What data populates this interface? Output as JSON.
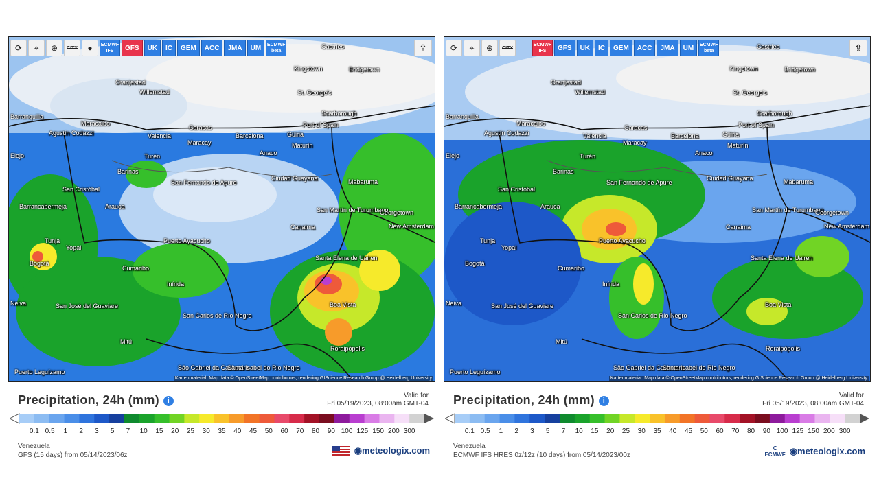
{
  "toolbar": {
    "city_label": "CITY",
    "left_models": [
      {
        "label": "ECMWF IFS",
        "active": false,
        "small": true
      },
      {
        "label": "GFS",
        "active": true,
        "small": false
      },
      {
        "label": "UK",
        "active": false,
        "small": false
      },
      {
        "label": "IC",
        "active": false,
        "small": false
      },
      {
        "label": "GEM",
        "active": false,
        "small": false
      },
      {
        "label": "ACC",
        "active": false,
        "small": false
      },
      {
        "label": "JMA",
        "active": false,
        "small": false
      },
      {
        "label": "UM",
        "active": false,
        "small": false
      },
      {
        "label": "ECMWF beta",
        "active": false,
        "small": true
      }
    ],
    "right_models": [
      {
        "label": "ECMWF IFS",
        "active": true,
        "small": true
      },
      {
        "label": "GFS",
        "active": false,
        "small": false
      },
      {
        "label": "UK",
        "active": false,
        "small": false
      },
      {
        "label": "IC",
        "active": false,
        "small": false
      },
      {
        "label": "GEM",
        "active": false,
        "small": false
      },
      {
        "label": "ACC",
        "active": false,
        "small": false
      },
      {
        "label": "JMA",
        "active": false,
        "small": false
      },
      {
        "label": "UM",
        "active": false,
        "small": false
      },
      {
        "label": "ECMWF beta",
        "active": false,
        "small": true
      }
    ]
  },
  "map": {
    "attribution": "Kartenmaterial: Map data © OpenStreetMap contributors, rendering GIScience Research Group @ Heidelberg University",
    "cities": [
      "Castries",
      "Oranjestad",
      "Willemstad",
      "Kingstown",
      "Bridgetown",
      "St. George's",
      "Scarborough",
      "Port of Spain",
      "Barranquilla",
      "Maracaibo",
      "Caracas",
      "Valencia",
      "Maracay",
      "Barcelona",
      "Güiria",
      "Maturín",
      "Agustín Codazzi",
      "Turén",
      "Anaco",
      "Barinas",
      "Ciudad Guayana",
      "Mabaruma",
      "San Cristóbal",
      "San Fernando de Apure",
      "Barrancabermeja",
      "Arauca",
      "San Martín de Turumbang",
      "Georgetown",
      "New Amsterdam",
      "Canaima",
      "Tunja",
      "Yopal",
      "Puerto Ayacucho",
      "Bogotá",
      "Cumaribo",
      "Santa Elena de Uairen",
      "Inírida",
      "Boa Vista",
      "San José del Guaviare",
      "San Carlos de Río Negro",
      "Mitú",
      "Roraipópolis",
      "Puerto Leguízamo",
      "São Gabriel da Cachoeira",
      "Santa Isabel do Rio Negro",
      "Elejo",
      "Neiva"
    ]
  },
  "left": {
    "title": "Precipitation, 24h (mm)",
    "valid_label": "Valid for",
    "valid_time": "Fri 05/19/2023, 08:00am GMT-04",
    "region": "Venezuela",
    "model_run": "GFS (15 days) from 05/14/2023/06z",
    "brand": "meteologix.com"
  },
  "right": {
    "title": "Precipitation, 24h (mm)",
    "valid_label": "Valid for",
    "valid_time": "Fri 05/19/2023, 08:00am GMT-04",
    "region": "Venezuela",
    "model_run": "ECMWF IFS HRES 0z/12z (10 days) from 05/14/2023/00z",
    "brand": "meteologix.com",
    "ecmwf_logo": "ECMWF"
  },
  "legend": {
    "ticks": [
      "0.1",
      "0.5",
      "1",
      "2",
      "3",
      "5",
      "7",
      "10",
      "15",
      "20",
      "25",
      "30",
      "35",
      "40",
      "45",
      "50",
      "60",
      "70",
      "80",
      "90",
      "100",
      "125",
      "150",
      "200",
      "300"
    ],
    "colors": [
      "#a7cdf7",
      "#8cbcf2",
      "#6aa5ee",
      "#4a8ee8",
      "#2f74dd",
      "#1d58c8",
      "#16409e",
      "#0f8a2e",
      "#1aa32b",
      "#36bf2b",
      "#71d425",
      "#c6e82a",
      "#f6ea2b",
      "#f9c22a",
      "#f79b2a",
      "#f27427",
      "#ee5a3a",
      "#e84a6a",
      "#d72b4a",
      "#a31226",
      "#7a0d1f",
      "#8d1a9c",
      "#b93ed0",
      "#d97ce6",
      "#eab5f0",
      "#f6dff8",
      "#d2d2d2"
    ]
  },
  "colors": {
    "accent": "#2f7fe3",
    "active_model": "#e8344c",
    "brand": "#1a3e7e"
  }
}
